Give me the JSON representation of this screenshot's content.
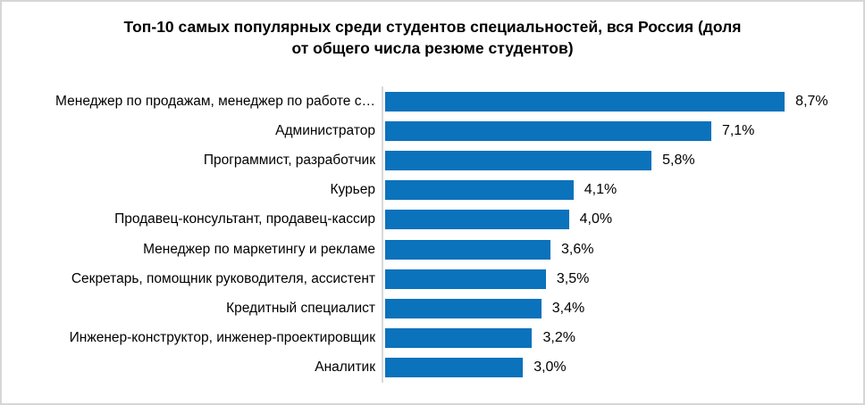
{
  "window": {
    "background": "#ffffff",
    "frame_border_color": "#d6d6d6"
  },
  "chart_data": {
    "type": "bar",
    "orientation": "horizontal",
    "title": "Топ-10 самых популярных среди студентов специальностей, вся Россия (доля от общего числа резюме студентов)",
    "title_lines": [
      "Топ-10 самых популярных среди студентов специальностей, вся Россия (доля",
      "от общего числа резюме студентов)"
    ],
    "categories": [
      "Менеджер по продажам, менеджер по работе с…",
      "Администратор",
      "Программист, разработчик",
      "Курьер",
      "Продавец-консультант, продавец-кассир",
      "Менеджер по маркетингу и рекламе",
      "Секретарь, помощник руководителя, ассистент",
      "Кредитный специалист",
      "Инженер-конструктор, инженер-проектировщик",
      "Аналитик"
    ],
    "values": [
      8.7,
      7.1,
      5.8,
      4.1,
      4.0,
      3.6,
      3.5,
      3.4,
      3.2,
      3.0
    ],
    "value_labels": [
      "8,7%",
      "7,1%",
      "5,8%",
      "4,1%",
      "4,0%",
      "3,6%",
      "3,5%",
      "3,4%",
      "3,2%",
      "3,0%"
    ],
    "xlabel": "",
    "ylabel": "",
    "xlim": [
      0,
      10
    ],
    "grid": false,
    "legend": false,
    "bar_color": "#0b72bc",
    "axis_line_color": "#d9d9d9",
    "text_color": "#000000"
  }
}
